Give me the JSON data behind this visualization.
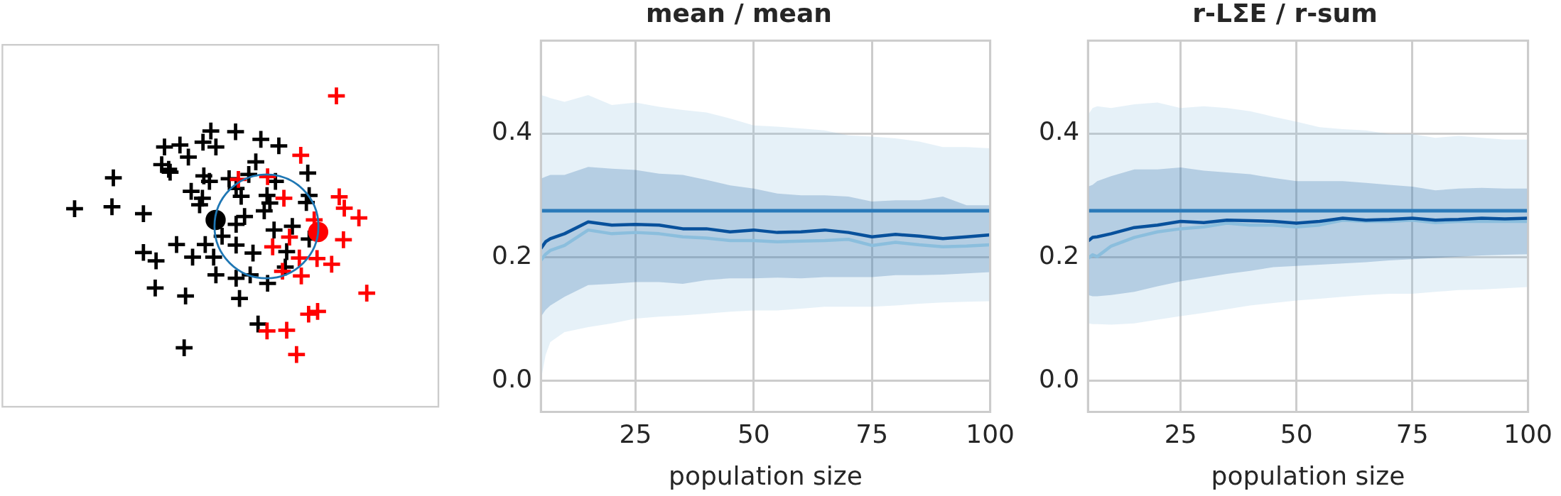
{
  "chart_data": [
    {
      "type": "line",
      "title": "mean / mean",
      "xlabel": "population size",
      "x": [
        5,
        6,
        7,
        10,
        15,
        20,
        25,
        30,
        35,
        40,
        45,
        50,
        55,
        60,
        65,
        70,
        75,
        80,
        85,
        90,
        95,
        100
      ],
      "xlim": [
        5,
        100
      ],
      "xticks": [
        25,
        50,
        75,
        100
      ],
      "ylim": [
        -0.05,
        0.55
      ],
      "yticks": [
        {
          "value": 0,
          "label": "0.0"
        },
        {
          "value": 0.2,
          "label": "0.2"
        },
        {
          "value": 0.4,
          "label": "0.4"
        }
      ],
      "grid": true,
      "legend": false,
      "marker": "none",
      "line_style": "solid",
      "ref_lines": [
        {
          "axis": "y",
          "value": 0.275,
          "color": "#2a7ab9"
        }
      ],
      "series": [
        {
          "color": "#8bbedd",
          "values": [
            0.195,
            0.205,
            0.211,
            0.219,
            0.244,
            0.238,
            0.24,
            0.238,
            0.233,
            0.231,
            0.227,
            0.227,
            0.225,
            0.226,
            0.227,
            0.229,
            0.219,
            0.224,
            0.22,
            0.217,
            0.218,
            0.22
          ],
          "lower": [
            0.001,
            0.042,
            0.063,
            0.079,
            0.087,
            0.093,
            0.101,
            0.104,
            0.106,
            0.109,
            0.112,
            0.114,
            0.114,
            0.117,
            0.12,
            0.12,
            0.12,
            0.122,
            0.125,
            0.127,
            0.128,
            0.129
          ],
          "upper": [
            0.462,
            0.46,
            0.457,
            0.451,
            0.462,
            0.446,
            0.45,
            0.443,
            0.438,
            0.434,
            0.424,
            0.413,
            0.411,
            0.408,
            0.405,
            0.397,
            0.395,
            0.392,
            0.387,
            0.378,
            0.378,
            0.376
          ]
        },
        {
          "color": "#08519c",
          "values": [
            0.214,
            0.225,
            0.23,
            0.238,
            0.257,
            0.252,
            0.253,
            0.252,
            0.246,
            0.246,
            0.241,
            0.244,
            0.24,
            0.241,
            0.244,
            0.24,
            0.233,
            0.237,
            0.234,
            0.23,
            0.233,
            0.236
          ],
          "lower": [
            0.104,
            0.115,
            0.122,
            0.136,
            0.155,
            0.157,
            0.16,
            0.16,
            0.157,
            0.163,
            0.166,
            0.166,
            0.167,
            0.166,
            0.168,
            0.168,
            0.168,
            0.171,
            0.171,
            0.172,
            0.174,
            0.176
          ],
          "upper": [
            0.327,
            0.33,
            0.333,
            0.333,
            0.346,
            0.343,
            0.341,
            0.335,
            0.333,
            0.325,
            0.316,
            0.311,
            0.303,
            0.3,
            0.3,
            0.298,
            0.29,
            0.292,
            0.292,
            0.298,
            0.284,
            0.284
          ]
        }
      ]
    },
    {
      "type": "line",
      "title": "r-LΣE / r-sum",
      "xlabel": "population size",
      "x": [
        5,
        6,
        7,
        10,
        15,
        20,
        25,
        30,
        35,
        40,
        45,
        50,
        55,
        60,
        65,
        70,
        75,
        80,
        85,
        90,
        95,
        100
      ],
      "xlim": [
        5,
        100
      ],
      "xticks": [
        25,
        50,
        75,
        100
      ],
      "ylim": [
        -0.05,
        0.55
      ],
      "yticks": [
        {
          "value": 0,
          "label": "0.0"
        },
        {
          "value": 0.2,
          "label": "0.2"
        },
        {
          "value": 0.4,
          "label": "0.4"
        }
      ],
      "grid": true,
      "legend": false,
      "marker": "none",
      "line_style": "solid",
      "ref_lines": [
        {
          "axis": "y",
          "value": 0.275,
          "color": "#2a7ab9"
        }
      ],
      "series": [
        {
          "color": "#8bbedd",
          "values": [
            0.198,
            0.204,
            0.201,
            0.218,
            0.232,
            0.241,
            0.246,
            0.249,
            0.255,
            0.252,
            0.252,
            0.249,
            0.252,
            0.26,
            0.258,
            0.258,
            0.26,
            0.256,
            0.258,
            0.258,
            0.258,
            0.258
          ],
          "lower": [
            0.093,
            0.092,
            0.092,
            0.091,
            0.093,
            0.099,
            0.105,
            0.11,
            0.116,
            0.122,
            0.126,
            0.13,
            0.133,
            0.136,
            0.139,
            0.141,
            0.141,
            0.144,
            0.147,
            0.148,
            0.15,
            0.152
          ],
          "upper": [
            0.43,
            0.441,
            0.444,
            0.441,
            0.447,
            0.45,
            0.441,
            0.444,
            0.441,
            0.436,
            0.427,
            0.419,
            0.41,
            0.407,
            0.405,
            0.399,
            0.399,
            0.393,
            0.396,
            0.393,
            0.39,
            0.39
          ]
        },
        {
          "color": "#08519c",
          "values": [
            0.226,
            0.232,
            0.233,
            0.238,
            0.248,
            0.252,
            0.258,
            0.256,
            0.26,
            0.259,
            0.258,
            0.255,
            0.258,
            0.263,
            0.26,
            0.261,
            0.263,
            0.26,
            0.261,
            0.263,
            0.262,
            0.263
          ],
          "lower": [
            0.139,
            0.137,
            0.137,
            0.139,
            0.144,
            0.153,
            0.161,
            0.167,
            0.173,
            0.178,
            0.184,
            0.186,
            0.188,
            0.19,
            0.192,
            0.195,
            0.197,
            0.199,
            0.201,
            0.203,
            0.204,
            0.205
          ],
          "upper": [
            0.314,
            0.317,
            0.323,
            0.331,
            0.342,
            0.342,
            0.345,
            0.34,
            0.337,
            0.334,
            0.328,
            0.323,
            0.323,
            0.323,
            0.32,
            0.317,
            0.314,
            0.308,
            0.311,
            0.312,
            0.311,
            0.311
          ]
        }
      ]
    }
  ]
}
